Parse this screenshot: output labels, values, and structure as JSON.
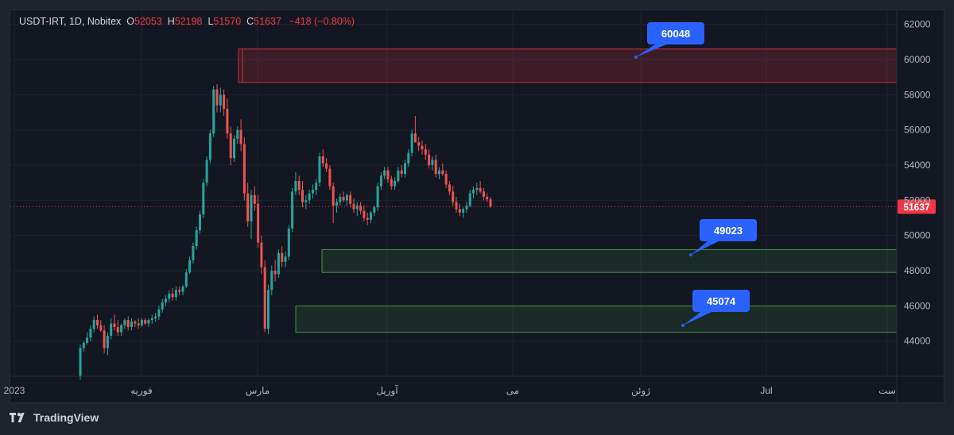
{
  "header": {
    "symbol": "USDT-IRT, 1D, Nobitex",
    "open_label": "O",
    "open": "52053",
    "high_label": "H",
    "high": "52198",
    "low_label": "L",
    "low": "51570",
    "close_label": "C",
    "close": "51637",
    "change": "−418 (−0.80%)"
  },
  "brand": {
    "name": "TradingView"
  },
  "colors": {
    "up": "#26a69a",
    "down": "#ef5350",
    "background": "#131722",
    "grid": "#1f2330",
    "callout": "#2962ff",
    "resistance_zone": "#f23645",
    "support_zone": "#4caf50"
  },
  "chart_data": {
    "type": "candlestick",
    "title": "USDT-IRT, 1D, Nobitex",
    "ylim": [
      42000,
      62800
    ],
    "y_ticks": [
      44000,
      46000,
      48000,
      50000,
      52000,
      54000,
      56000,
      58000,
      60000,
      62000
    ],
    "x_tick_labels": [
      "2023",
      "فوریه",
      "مارس",
      "آوریل",
      "می",
      "ژوئن",
      "Jul",
      "ست"
    ],
    "last_price": 51637,
    "zones": [
      {
        "kind": "resistance",
        "from": 58700,
        "to": 60600
      },
      {
        "kind": "support",
        "from": 47900,
        "to": 49200
      },
      {
        "kind": "support",
        "from": 44500,
        "to": 46000
      }
    ],
    "callouts": [
      "60048",
      "49023",
      "45074"
    ],
    "candles": [
      [
        42000,
        43800,
        41800,
        43600
      ],
      [
        43600,
        44000,
        43400,
        43900
      ],
      [
        43900,
        44500,
        43800,
        44200
      ],
      [
        44200,
        44900,
        44000,
        44700
      ],
      [
        44700,
        45400,
        44500,
        45200
      ],
      [
        45200,
        45500,
        44700,
        44900
      ],
      [
        44900,
        45200,
        44500,
        44600
      ],
      [
        44600,
        44900,
        43300,
        43600
      ],
      [
        43600,
        44500,
        43200,
        44300
      ],
      [
        44300,
        45300,
        44100,
        45000
      ],
      [
        45000,
        45500,
        44600,
        44800
      ],
      [
        44800,
        45200,
        44300,
        44500
      ],
      [
        44500,
        45000,
        44300,
        44900
      ],
      [
        44900,
        45300,
        44700,
        45200
      ],
      [
        45200,
        45400,
        44600,
        44800
      ],
      [
        44800,
        45300,
        44600,
        45100
      ],
      [
        45100,
        45200,
        44800,
        45000
      ],
      [
        45000,
        45300,
        44700,
        44900
      ],
      [
        44900,
        45300,
        44800,
        45200
      ],
      [
        45200,
        45300,
        44900,
        45000
      ],
      [
        45000,
        45300,
        44800,
        45200
      ],
      [
        45200,
        45500,
        45000,
        45300
      ],
      [
        45300,
        45600,
        45100,
        45400
      ],
      [
        45400,
        46000,
        45200,
        45800
      ],
      [
        45800,
        46400,
        45600,
        46200
      ],
      [
        46200,
        46600,
        46000,
        46400
      ],
      [
        46400,
        46900,
        46200,
        46700
      ],
      [
        46700,
        47000,
        46300,
        46500
      ],
      [
        46500,
        47100,
        46300,
        46900
      ],
      [
        46900,
        47100,
        46600,
        46800
      ],
      [
        46800,
        47200,
        46600,
        47100
      ],
      [
        47100,
        48100,
        47000,
        47900
      ],
      [
        47900,
        48800,
        47800,
        48600
      ],
      [
        48600,
        49600,
        48400,
        49400
      ],
      [
        49400,
        50500,
        49200,
        50300
      ],
      [
        50300,
        51400,
        50100,
        51200
      ],
      [
        51200,
        53200,
        51000,
        53000
      ],
      [
        53000,
        54500,
        52800,
        54300
      ],
      [
        54300,
        56000,
        54100,
        55800
      ],
      [
        55800,
        58500,
        55600,
        58300
      ],
      [
        58300,
        58600,
        57000,
        57400
      ],
      [
        57400,
        58400,
        57000,
        58000
      ],
      [
        58000,
        58300,
        56800,
        57200
      ],
      [
        57200,
        57800,
        55500,
        55800
      ],
      [
        55800,
        56200,
        54000,
        54400
      ],
      [
        54400,
        55700,
        54200,
        55500
      ],
      [
        55500,
        56200,
        55200,
        56000
      ],
      [
        56000,
        56600,
        54800,
        55200
      ],
      [
        55200,
        55600,
        52000,
        52400
      ],
      [
        52400,
        53000,
        50500,
        50800
      ],
      [
        50800,
        52600,
        49800,
        52300
      ],
      [
        52300,
        52800,
        51400,
        51800
      ],
      [
        51800,
        52300,
        49300,
        49600
      ],
      [
        49600,
        50000,
        47800,
        48200
      ],
      [
        48200,
        48600,
        44500,
        44700
      ],
      [
        44700,
        47200,
        44400,
        46900
      ],
      [
        46900,
        48300,
        46600,
        48000
      ],
      [
        48000,
        48600,
        47400,
        47800
      ],
      [
        47800,
        49200,
        47600,
        49000
      ],
      [
        49000,
        49400,
        48200,
        48500
      ],
      [
        48500,
        49100,
        48200,
        48800
      ],
      [
        48800,
        50600,
        48600,
        50400
      ],
      [
        50400,
        52700,
        50200,
        52500
      ],
      [
        52500,
        53600,
        52300,
        53100
      ],
      [
        53100,
        53400,
        52300,
        52600
      ],
      [
        52600,
        53100,
        51600,
        51900
      ],
      [
        51900,
        52300,
        51500,
        52000
      ],
      [
        52000,
        52600,
        51800,
        52400
      ],
      [
        52400,
        52900,
        52100,
        52600
      ],
      [
        52600,
        53200,
        52300,
        53000
      ],
      [
        53000,
        54700,
        52800,
        54500
      ],
      [
        54500,
        54900,
        53900,
        54100
      ],
      [
        54100,
        54400,
        53600,
        53800
      ],
      [
        53800,
        54000,
        52600,
        52800
      ],
      [
        52800,
        53000,
        50700,
        51700
      ],
      [
        51700,
        52100,
        51300,
        51900
      ],
      [
        51900,
        52400,
        51700,
        52200
      ],
      [
        52200,
        52500,
        51900,
        52000
      ],
      [
        52000,
        52400,
        51700,
        52300
      ],
      [
        52300,
        52500,
        51600,
        51800
      ],
      [
        51800,
        52100,
        51300,
        51500
      ],
      [
        51500,
        51900,
        51100,
        51700
      ],
      [
        51700,
        51900,
        51200,
        51400
      ],
      [
        51400,
        51700,
        50800,
        51000
      ],
      [
        51000,
        51300,
        50600,
        50900
      ],
      [
        50900,
        51400,
        50700,
        51300
      ],
      [
        51300,
        51700,
        51100,
        51600
      ],
      [
        51600,
        53000,
        51400,
        52800
      ],
      [
        52800,
        53600,
        52600,
        53400
      ],
      [
        53400,
        53900,
        53200,
        53700
      ],
      [
        53700,
        53900,
        53000,
        53200
      ],
      [
        53200,
        53400,
        52600,
        52800
      ],
      [
        52800,
        53300,
        52600,
        53100
      ],
      [
        53100,
        53900,
        53000,
        53700
      ],
      [
        53700,
        54000,
        53300,
        53500
      ],
      [
        53500,
        54300,
        53300,
        54100
      ],
      [
        54100,
        54900,
        53900,
        54700
      ],
      [
        54700,
        56000,
        54500,
        55800
      ],
      [
        55800,
        56800,
        55500,
        55300
      ],
      [
        55300,
        55600,
        54800,
        55100
      ],
      [
        55100,
        55400,
        54600,
        54900
      ],
      [
        54900,
        55200,
        54300,
        54600
      ],
      [
        54600,
        54900,
        53800,
        54000
      ],
      [
        54000,
        54500,
        53700,
        54300
      ],
      [
        54300,
        54600,
        53300,
        53500
      ],
      [
        53500,
        53900,
        53200,
        53700
      ],
      [
        53700,
        54100,
        53400,
        53500
      ],
      [
        53500,
        53700,
        52700,
        52900
      ],
      [
        52900,
        53100,
        52300,
        52500
      ],
      [
        52500,
        52800,
        51700,
        51900
      ],
      [
        51900,
        52200,
        51300,
        51500
      ],
      [
        51500,
        51800,
        51100,
        51300
      ],
      [
        51300,
        51600,
        51000,
        51500
      ],
      [
        51500,
        51900,
        51300,
        51700
      ],
      [
        51700,
        52600,
        51600,
        52400
      ],
      [
        52400,
        52800,
        52100,
        52600
      ],
      [
        52600,
        53000,
        52300,
        52700
      ],
      [
        52700,
        53100,
        52400,
        52500
      ],
      [
        52500,
        52700,
        52000,
        52200
      ],
      [
        52200,
        52400,
        51900,
        52053
      ],
      [
        52053,
        52198,
        51570,
        51637
      ]
    ]
  }
}
